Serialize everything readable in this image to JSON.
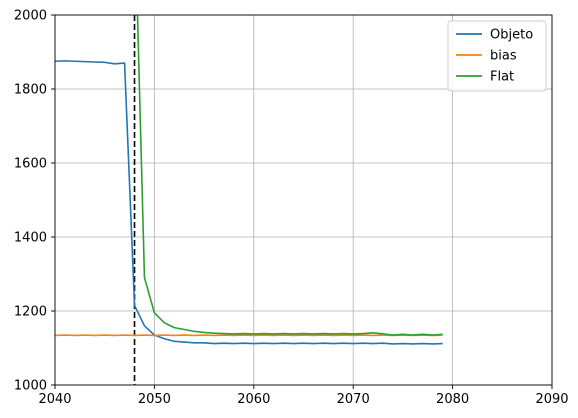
{
  "chart_data": {
    "type": "line",
    "title": "",
    "xlabel": "",
    "ylabel": "",
    "xlim": [
      2040,
      2090
    ],
    "ylim": [
      1000,
      2000
    ],
    "x_ticks": [
      2040,
      2050,
      2060,
      2070,
      2080,
      2090
    ],
    "y_ticks": [
      1000,
      1200,
      1400,
      1600,
      1800,
      2000
    ],
    "grid": true,
    "legend_position": "top-right",
    "vertical_line": {
      "x": 2048.0,
      "style": "dashed",
      "color": "#000000"
    },
    "series": [
      {
        "name": "Objeto",
        "color": "#1f77b4",
        "x": [
          2040,
          2041,
          2042,
          2043,
          2044,
          2045,
          2046,
          2047,
          2048,
          2049,
          2050,
          2051,
          2052,
          2053,
          2054,
          2055,
          2056,
          2057,
          2058,
          2059,
          2060,
          2061,
          2062,
          2063,
          2064,
          2065,
          2066,
          2067,
          2068,
          2069,
          2070,
          2071,
          2072,
          2073,
          2074,
          2075,
          2076,
          2077,
          2078,
          2079
        ],
        "values": [
          1875,
          1876,
          1875,
          1874,
          1873,
          1872,
          1868,
          1870,
          1215,
          1160,
          1135,
          1125,
          1118,
          1116,
          1114,
          1114,
          1112,
          1113,
          1112,
          1113,
          1112,
          1113,
          1112,
          1113,
          1112,
          1113,
          1112,
          1113,
          1112,
          1113,
          1112,
          1113,
          1112,
          1113,
          1111,
          1112,
          1111,
          1112,
          1111,
          1112
        ]
      },
      {
        "name": "bias",
        "color": "#ff7f0e",
        "x": [
          2040,
          2041,
          2042,
          2043,
          2044,
          2045,
          2046,
          2047,
          2048,
          2049,
          2050,
          2051,
          2052,
          2053,
          2054,
          2055,
          2056,
          2057,
          2058,
          2059,
          2060,
          2061,
          2062,
          2063,
          2064,
          2065,
          2066,
          2067,
          2068,
          2069,
          2070,
          2071,
          2072,
          2073,
          2074,
          2075,
          2076,
          2077,
          2078,
          2079
        ],
        "values": [
          1134,
          1135,
          1134,
          1135,
          1134,
          1135,
          1134,
          1135,
          1134,
          1135,
          1134,
          1135,
          1134,
          1135,
          1134,
          1135,
          1134,
          1135,
          1134,
          1135,
          1134,
          1135,
          1134,
          1135,
          1134,
          1135,
          1134,
          1135,
          1134,
          1135,
          1134,
          1135,
          1134,
          1135,
          1134,
          1135,
          1134,
          1135,
          1134,
          1135
        ]
      },
      {
        "name": "Flat",
        "color": "#2ca02c",
        "x": [
          2048.3,
          2049,
          2050,
          2051,
          2052,
          2053,
          2054,
          2055,
          2056,
          2057,
          2058,
          2059,
          2060,
          2061,
          2062,
          2063,
          2064,
          2065,
          2066,
          2067,
          2068,
          2069,
          2070,
          2071,
          2072,
          2073,
          2074,
          2075,
          2076,
          2077,
          2078,
          2079
        ],
        "values": [
          2000,
          1290,
          1195,
          1168,
          1155,
          1150,
          1145,
          1142,
          1140,
          1139,
          1138,
          1139,
          1138,
          1139,
          1138,
          1139,
          1138,
          1139,
          1138,
          1139,
          1138,
          1139,
          1138,
          1139,
          1141,
          1138,
          1135,
          1137,
          1135,
          1137,
          1135,
          1137
        ]
      }
    ]
  }
}
